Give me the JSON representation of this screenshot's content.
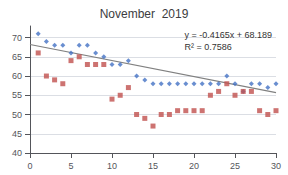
{
  "chart_data": {
    "type": "scatter",
    "title": "November  2019",
    "x": [
      1,
      2,
      3,
      4,
      5,
      6,
      7,
      8,
      9,
      10,
      11,
      12,
      13,
      14,
      15,
      16,
      17,
      18,
      19,
      20,
      21,
      22,
      23,
      24,
      25,
      26,
      27,
      28,
      29,
      30
    ],
    "series": [
      {
        "color": "#4472C4",
        "marker": "diamond",
        "values": [
          71,
          69,
          68,
          68,
          66,
          68,
          68,
          66,
          65,
          63,
          63,
          64,
          60,
          59,
          58,
          58,
          58,
          58,
          58,
          58,
          58,
          58,
          58,
          60,
          58,
          56,
          58,
          58,
          57,
          58
        ]
      },
      {
        "color": "#C0504D",
        "marker": "square",
        "values": [
          66,
          60,
          59,
          58,
          64,
          65,
          63,
          63,
          63,
          54,
          55,
          57,
          50,
          49,
          47,
          50,
          50,
          51,
          51,
          51,
          51,
          55,
          56,
          58,
          55,
          56,
          56,
          51,
          50,
          51
        ]
      },
      {
        "type": "line",
        "color": "#808080",
        "x": [
          0,
          30
        ],
        "values": [
          68.189,
          55.694
        ]
      }
    ],
    "annotations": [
      "y = -0.4165x + 68.189",
      "R² = 0.7586"
    ],
    "xlim": [
      0,
      30
    ],
    "ylim": [
      40,
      73
    ],
    "xticks": [
      0,
      5,
      10,
      15,
      20,
      25,
      30
    ],
    "yticks": [
      40,
      45,
      50,
      55,
      60,
      65,
      70
    ],
    "grid": true
  }
}
